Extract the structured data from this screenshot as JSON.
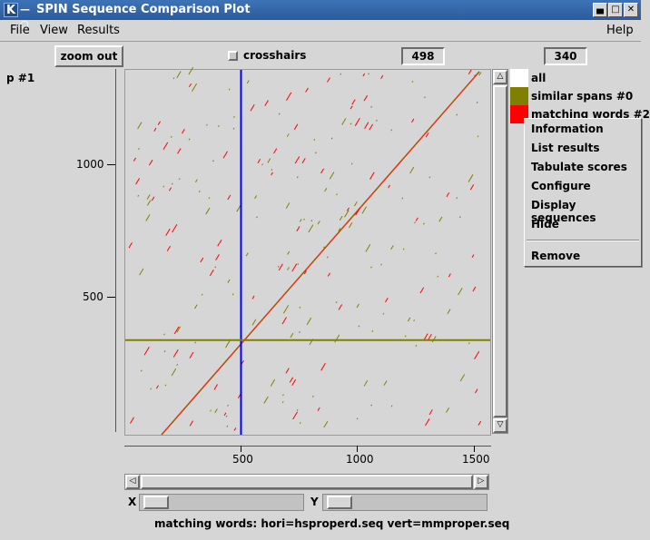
{
  "window": {
    "title": "SPIN Sequence Comparison Plot",
    "icon_letter": "K",
    "controls": [
      "minimize-icon",
      "maximize-icon",
      "close-icon"
    ]
  },
  "menubar": {
    "file": "File",
    "view": "View",
    "results": "Results",
    "help": "Help"
  },
  "toolbar": {
    "zoom_out": "zoom out",
    "crosshairs": "crosshairs",
    "crosshairs_checked": false,
    "x_value": "498",
    "y_value": "340"
  },
  "plot_label": "p #1",
  "y_axis": {
    "ticks": [
      "1000",
      "500"
    ]
  },
  "x_axis": {
    "ticks": [
      "500",
      "1000",
      "1500"
    ]
  },
  "legend": [
    {
      "label": "all",
      "color": "#ffffff"
    },
    {
      "label": "similar spans #0",
      "color": "#808000"
    },
    {
      "label": "matching words #2",
      "color": "#ff0000"
    }
  ],
  "context_menu": {
    "items": [
      "Information",
      "List results",
      "Tabulate scores",
      "Configure",
      "Display sequences",
      "Hide"
    ],
    "remove": "Remove"
  },
  "sliders": {
    "x_label": "X",
    "y_label": "Y"
  },
  "status": "matching words: hori=hsproperd.seq vert=mmproper.seq",
  "colors": {
    "crosshair_vertical": "#0000ff",
    "crosshair_horizontal": "#808000",
    "match_red": "#ff0000",
    "match_olive": "#808000"
  },
  "chart_data": {
    "type": "scatter",
    "description_type": "dot-plot",
    "x_ticks": [
      500,
      1000,
      1500
    ],
    "y_ticks": [
      500,
      1000
    ],
    "crosshair": {
      "x": 498,
      "y": 340
    },
    "series": [
      {
        "name": "similar spans #0",
        "color": "#808000"
      },
      {
        "name": "matching words #2",
        "color": "#ff0000"
      }
    ]
  }
}
